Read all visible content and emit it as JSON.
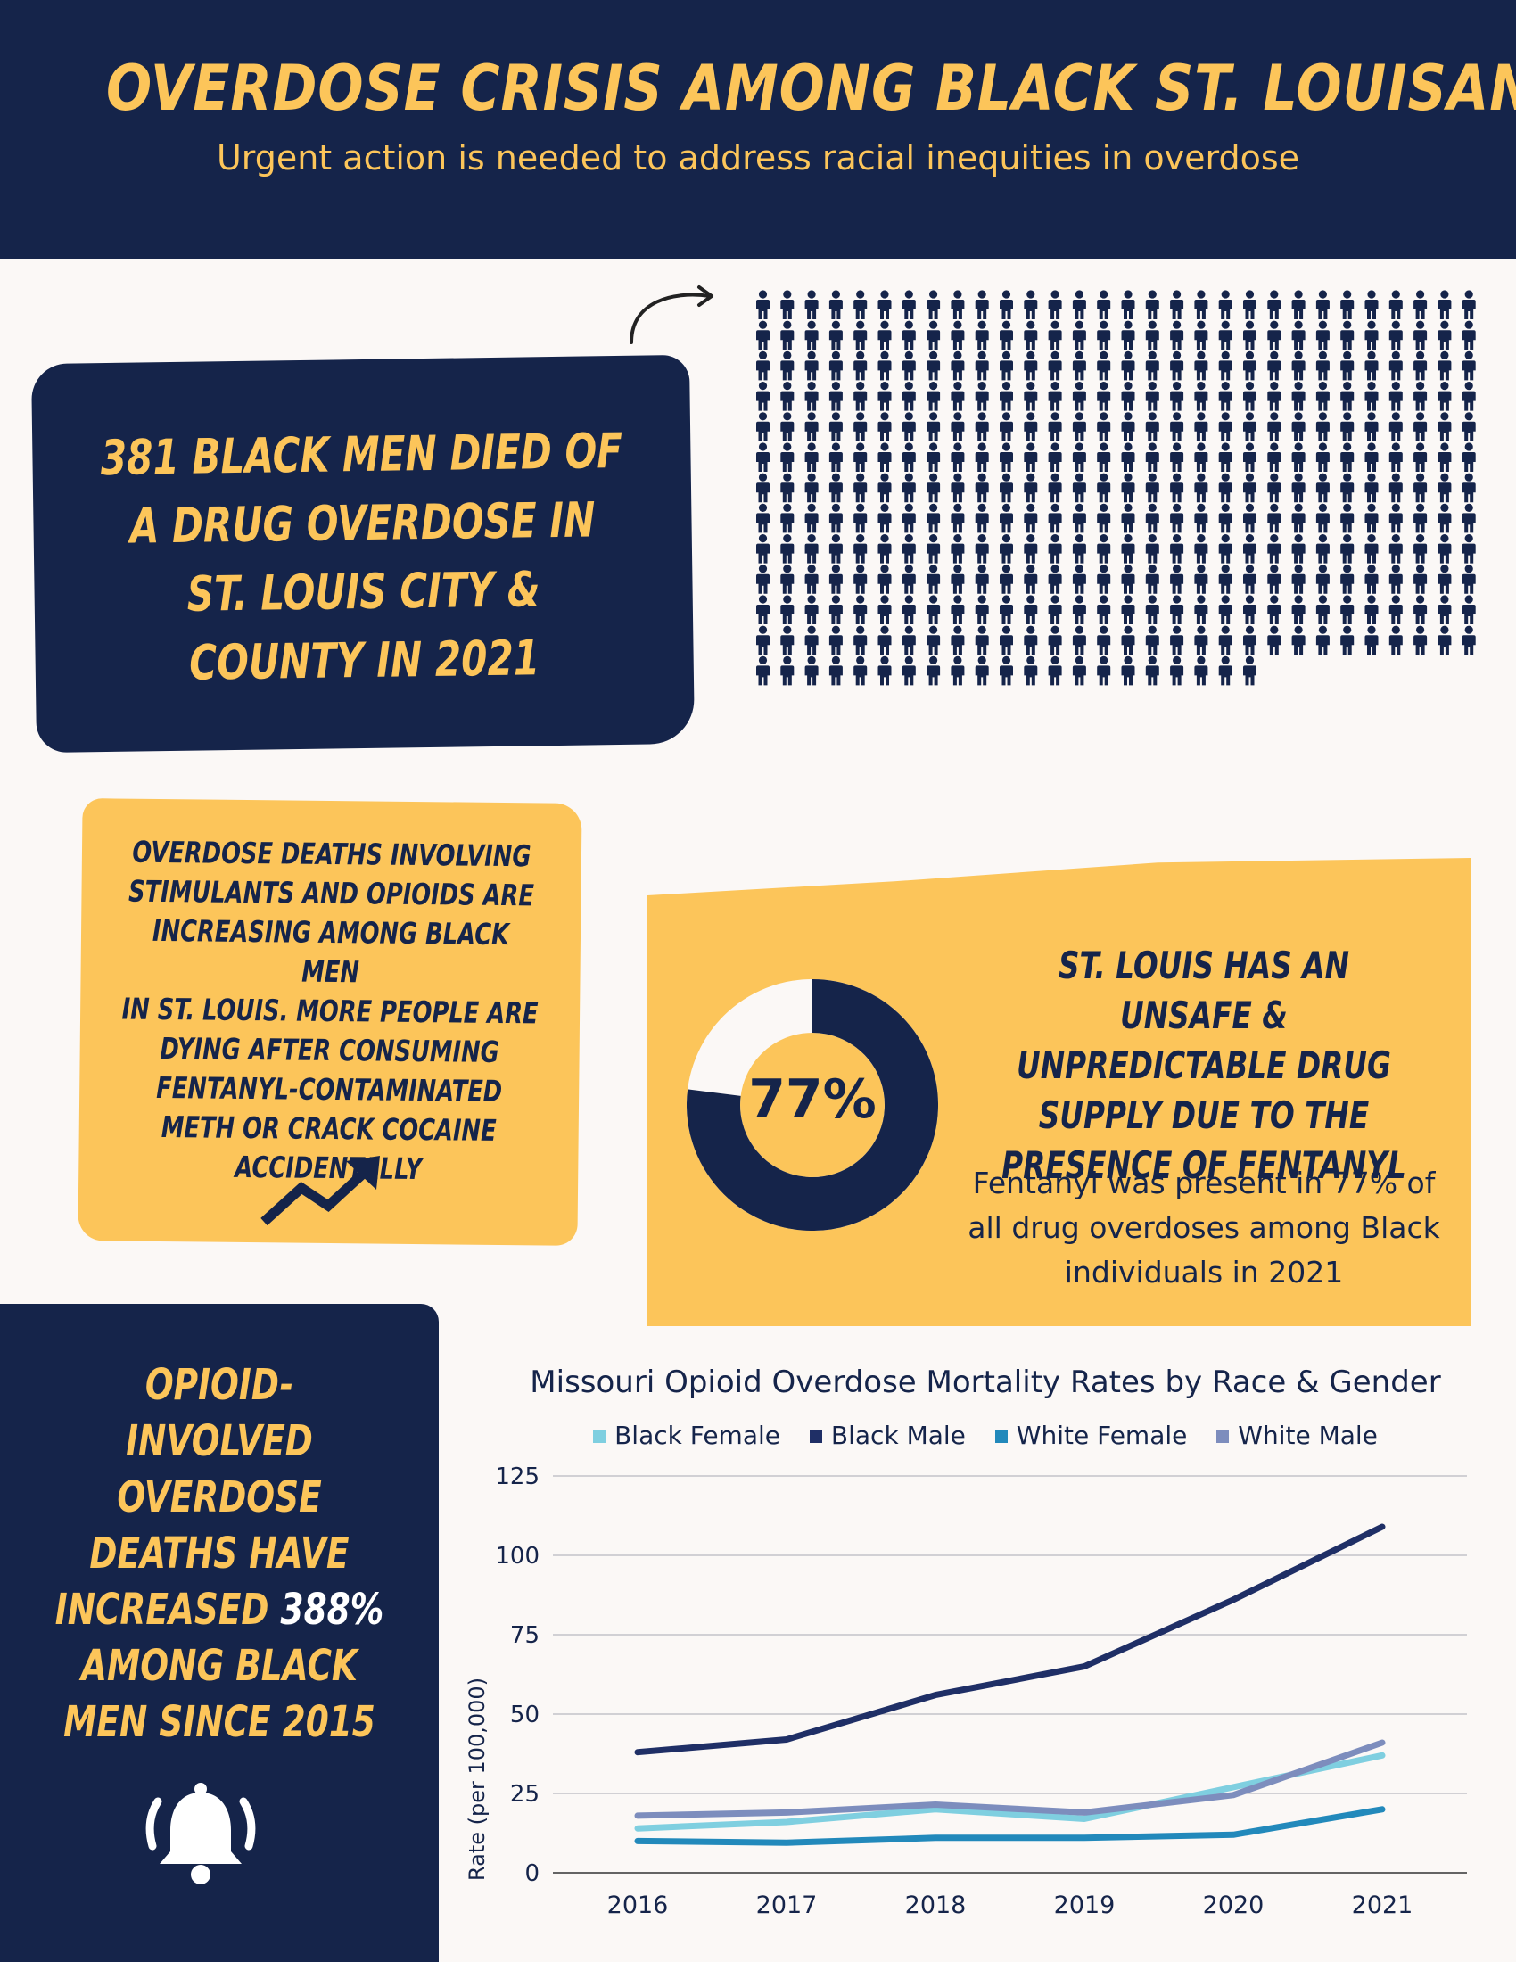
{
  "header": {
    "title": "OVERDOSE CRISIS AMONG BLACK ST. LOUISANS",
    "subtitle": "Urgent action is needed to address racial inequities in overdose"
  },
  "deaths_box": {
    "lines": [
      "381 BLACK MEN DIED OF",
      "A DRUG OVERDOSE IN",
      "ST. LOUIS CITY &",
      "COUNTY IN 2021"
    ],
    "count": 381
  },
  "stimulants_box": {
    "lines": [
      "OVERDOSE DEATHS INVOLVING",
      "STIMULANTS AND OPIOIDS ARE",
      "INCREASING AMONG BLACK MEN",
      "IN ST. LOUIS. MORE PEOPLE ARE",
      "DYING AFTER CONSUMING",
      "FENTANYL-CONTAMINATED",
      "METH OR CRACK COCAINE",
      "ACCIDENTALLY"
    ]
  },
  "fentanyl_box": {
    "donut_label": "77%",
    "percent": 77,
    "heading_lines": [
      "ST. LOUIS HAS AN UNSAFE &",
      "UNPREDICTABLE DRUG",
      "SUPPLY DUE TO THE",
      "PRESENCE OF FENTANYL"
    ],
    "body_lines": [
      "Fentanyl was present in 77% of",
      "all drug overdoses among Black",
      "individuals in 2021"
    ]
  },
  "opioid_box": {
    "lines_before": [
      "OPIOID-",
      "INVOLVED",
      "OVERDOSE",
      "DEATHS HAVE"
    ],
    "increased_word": "INCREASED ",
    "highlight": "388%",
    "lines_after": [
      "AMONG BLACK",
      "MEN SINCE 2015"
    ]
  },
  "icons": {
    "arrow": "curved-arrow-icon",
    "trend": "trending-up-icon",
    "bell": "alarm-bell-icon",
    "person": "person-icon"
  },
  "colors": {
    "navy": "#15244a",
    "gold": "#fcc55a",
    "background": "#fbf8f6",
    "white": "#ffffff"
  },
  "chart_data": {
    "type": "line",
    "title": "Missouri Opioid Overdose Mortality Rates by Race & Gender",
    "xlabel": "",
    "ylabel": "Rate (per 100,000)",
    "categories": [
      "2016",
      "2017",
      "2018",
      "2019",
      "2020",
      "2021"
    ],
    "ylim": [
      0,
      125
    ],
    "yticks": [
      0,
      25,
      50,
      75,
      100,
      125
    ],
    "grid": true,
    "legend": "top",
    "series": [
      {
        "name": "Black Female",
        "color": "#7fcfe0",
        "values": [
          14,
          16,
          20,
          17,
          27,
          37
        ]
      },
      {
        "name": "Black Male",
        "color": "#1f2f66",
        "values": [
          38,
          42,
          56,
          65,
          86,
          109
        ]
      },
      {
        "name": "White Female",
        "color": "#2289bb",
        "values": [
          10,
          9.5,
          11,
          11,
          12,
          20
        ]
      },
      {
        "name": "White Male",
        "color": "#7d8dbd",
        "values": [
          18,
          19,
          21.5,
          19,
          24.5,
          41
        ]
      }
    ]
  }
}
